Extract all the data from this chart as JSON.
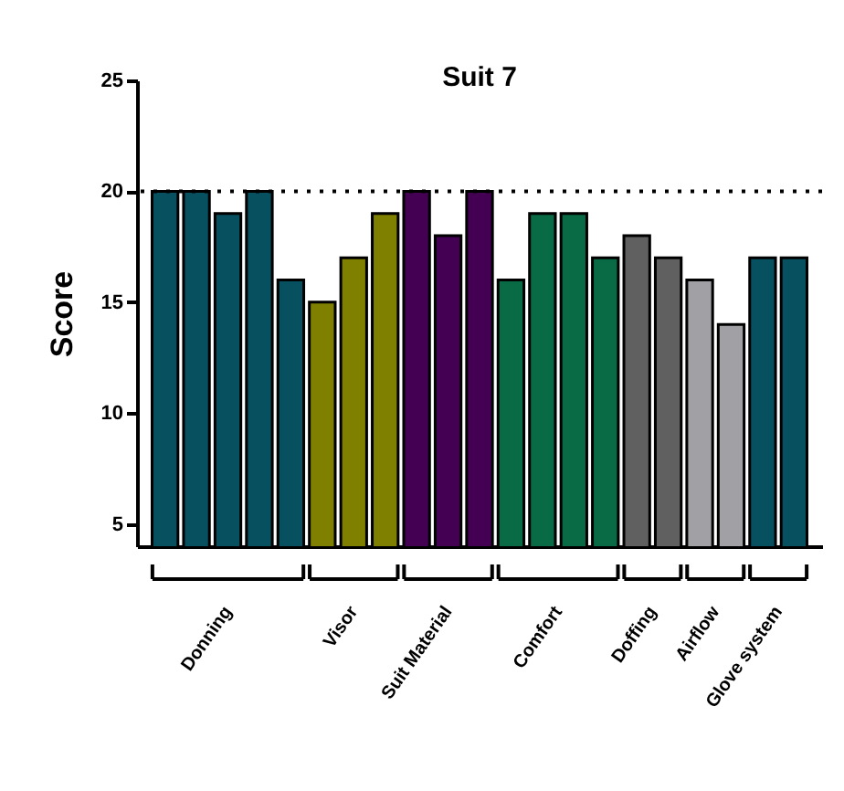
{
  "chart_data": {
    "type": "bar",
    "title": "Suit 7",
    "ylabel": "Score",
    "categories": [
      null,
      null,
      null,
      null,
      null,
      null,
      null,
      null,
      null,
      null,
      null,
      null,
      null,
      null,
      null,
      null,
      null,
      null,
      null,
      null,
      null
    ],
    "series": [
      {
        "name": "Donning",
        "color": "#07505f",
        "values": [
          20,
          20,
          19,
          20,
          16,
          null,
          null,
          null,
          null,
          null,
          null,
          null,
          null,
          null,
          null,
          null,
          null,
          null,
          null,
          null,
          null
        ]
      },
      {
        "name": "Visor",
        "color": "#7f7f00",
        "values": [
          null,
          null,
          null,
          null,
          null,
          15,
          17,
          19,
          null,
          null,
          null,
          null,
          null,
          null,
          null,
          null,
          null,
          null,
          null,
          null,
          null
        ]
      },
      {
        "name": "Suit Material",
        "color": "#440154",
        "values": [
          null,
          null,
          null,
          null,
          null,
          null,
          null,
          null,
          20,
          18,
          20,
          null,
          null,
          null,
          null,
          null,
          null,
          null,
          null,
          null,
          null
        ]
      },
      {
        "name": "Comfort",
        "color": "#086b45",
        "values": [
          null,
          null,
          null,
          null,
          null,
          null,
          null,
          null,
          null,
          null,
          null,
          16,
          19,
          19,
          17,
          null,
          null,
          null,
          null,
          null,
          null
        ]
      },
      {
        "name": "Doffing",
        "color": "#606060",
        "values": [
          null,
          null,
          null,
          null,
          null,
          null,
          null,
          null,
          null,
          null,
          null,
          null,
          null,
          null,
          null,
          18,
          17,
          null,
          null,
          null,
          null
        ]
      },
      {
        "name": "Airflow",
        "color": "#a0a0a5",
        "values": [
          null,
          null,
          null,
          null,
          null,
          null,
          null,
          null,
          null,
          null,
          null,
          null,
          null,
          null,
          null,
          null,
          null,
          16,
          14,
          null,
          null
        ]
      },
      {
        "name": "Glove system",
        "color": "#07505f",
        "values": [
          null,
          null,
          null,
          null,
          null,
          null,
          null,
          null,
          null,
          null,
          null,
          null,
          null,
          null,
          null,
          null,
          null,
          null,
          null,
          17,
          17
        ]
      }
    ],
    "ylim": [
      4,
      25
    ],
    "yticks": [
      5,
      10,
      15,
      20,
      25
    ],
    "ref_lines": [
      {
        "axis": "y",
        "value": 20,
        "color": "#000000",
        "line_style": "dotted"
      }
    ],
    "grid": false,
    "legend": false
  }
}
